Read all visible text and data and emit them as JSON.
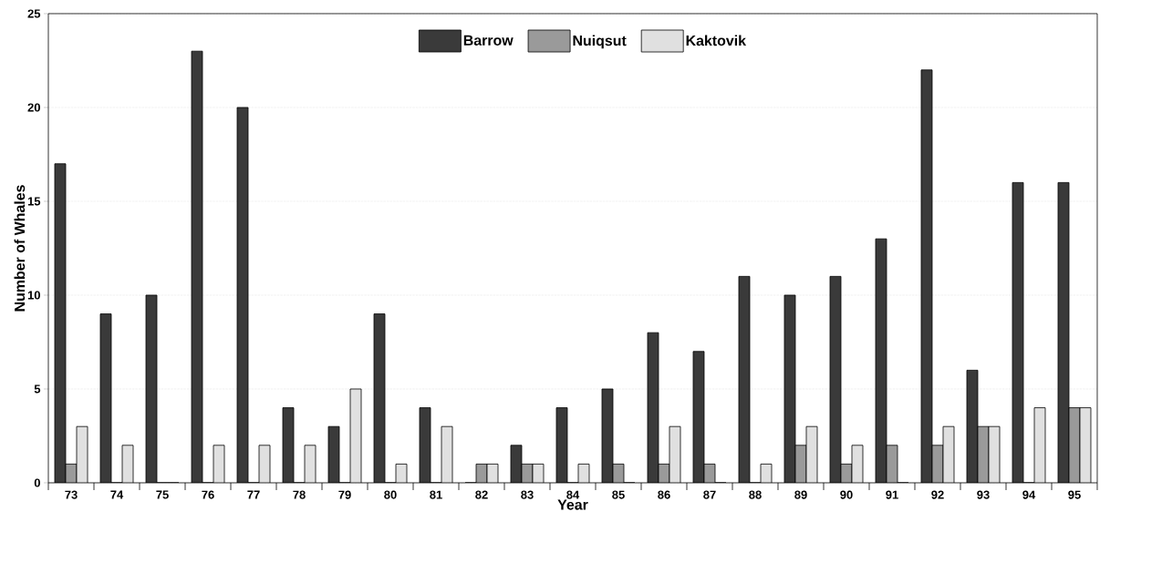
{
  "chart_data": {
    "type": "bar",
    "xlabel": "Year",
    "ylabel": "Number of Whales",
    "categories": [
      "73",
      "74",
      "75",
      "76",
      "77",
      "78",
      "79",
      "80",
      "81",
      "82",
      "83",
      "84",
      "85",
      "86",
      "87",
      "88",
      "89",
      "90",
      "91",
      "92",
      "93",
      "94",
      "95"
    ],
    "series": [
      {
        "name": "Barrow",
        "color": "#3a3a3a",
        "values": [
          17,
          9,
          10,
          23,
          20,
          4,
          3,
          9,
          4,
          0,
          2,
          4,
          5,
          8,
          7,
          11,
          10,
          11,
          13,
          22,
          6,
          16,
          16
        ]
      },
      {
        "name": "Nuiqsut",
        "color": "#9a9a9a",
        "values": [
          1,
          0,
          0,
          0,
          0,
          0,
          0,
          0,
          0,
          1,
          1,
          0,
          1,
          1,
          1,
          0,
          2,
          1,
          2,
          2,
          3,
          0,
          4
        ]
      },
      {
        "name": "Kaktovik",
        "color": "#e0e0e0",
        "values": [
          3,
          2,
          0,
          2,
          2,
          2,
          5,
          1,
          3,
          1,
          1,
          1,
          0,
          3,
          0,
          1,
          3,
          2,
          0,
          3,
          3,
          4,
          4
        ]
      }
    ],
    "ylim": [
      0,
      25
    ],
    "yticks": [
      0,
      5,
      10,
      15,
      20,
      25
    ],
    "grid": "y",
    "legend": "top"
  }
}
